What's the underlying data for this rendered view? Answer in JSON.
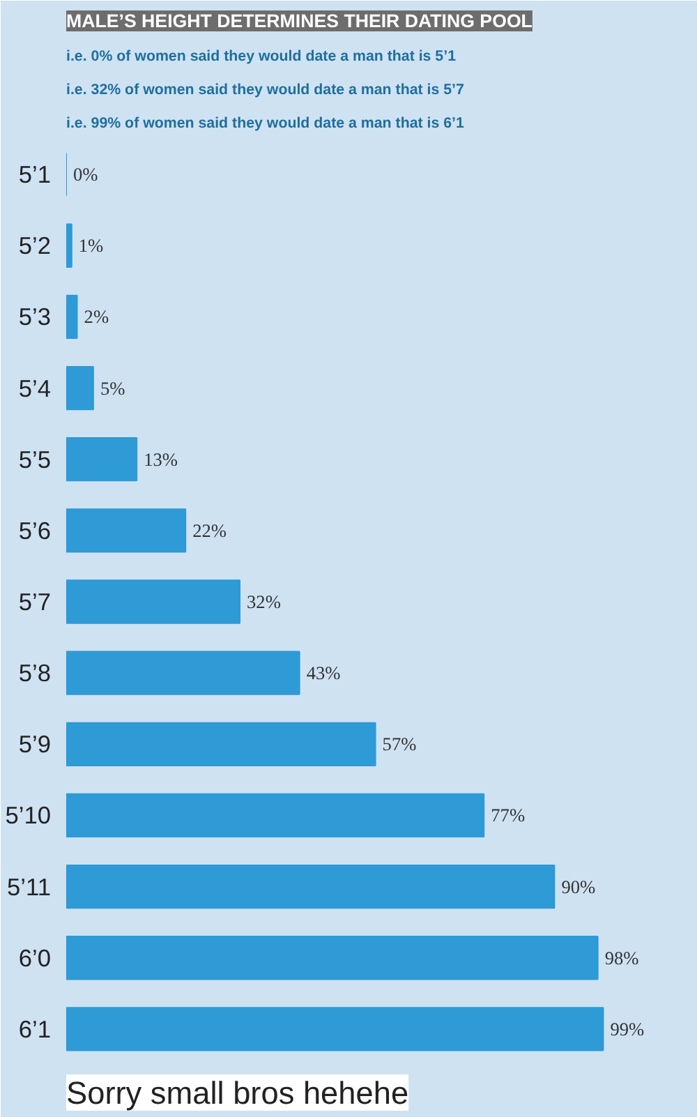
{
  "chart_data": {
    "type": "bar",
    "orientation": "horizontal",
    "title": "MALE’S HEIGHT DETERMINES THEIR DATING POOL",
    "annotations": [
      "i.e. 0% of women said they would date a man that is 5’1",
      "i.e. 32% of women said they would date a man that is 5’7",
      "i.e. 99% of women said they would date a man that is 6’1",
      "Sorry small bros hehehe"
    ],
    "categories": [
      "5’1",
      "5’2",
      "5’3",
      "5’4",
      "5’5",
      "5’6",
      "5’7",
      "5’8",
      "5’9",
      "5’10",
      "5’11",
      "6’0",
      "6’1"
    ],
    "values": [
      0,
      1,
      2,
      5,
      13,
      22,
      32,
      43,
      57,
      77,
      90,
      98,
      99
    ],
    "value_labels": [
      "0%",
      "1%",
      "2%",
      "5%",
      "13%",
      "22%",
      "32%",
      "43%",
      "57%",
      "77%",
      "90%",
      "98%",
      "99%"
    ],
    "color": "#2e9ad6",
    "tick_labels": "y",
    "grid": false
  }
}
